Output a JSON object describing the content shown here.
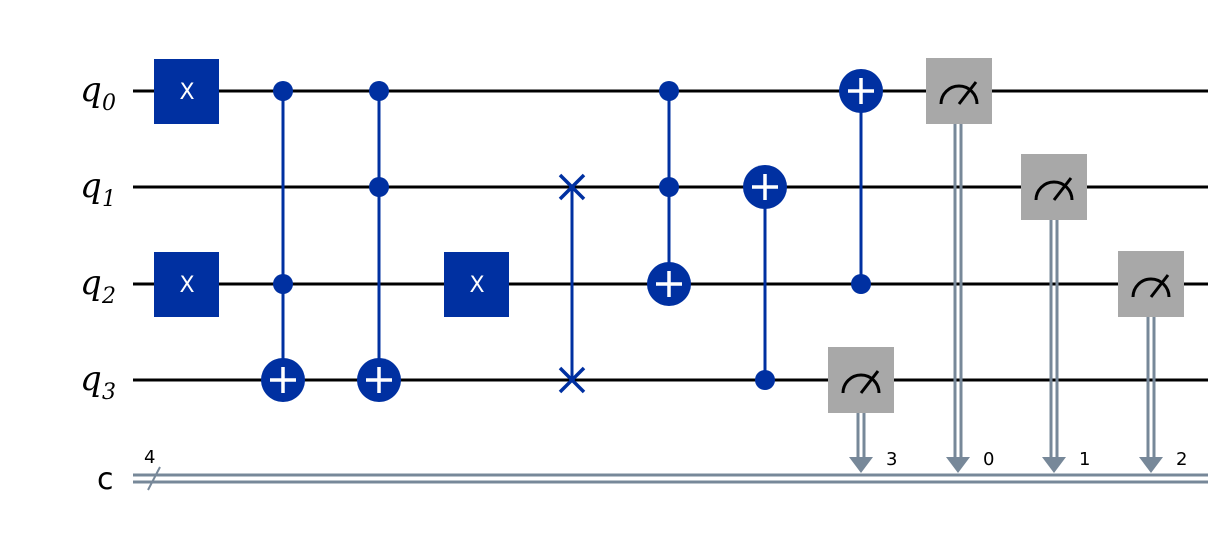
{
  "colors": {
    "gate": "#0030a1",
    "wire": "#000000",
    "measure": "#a8a8a8",
    "classical": "#778899"
  },
  "qubits": [
    {
      "letter": "q",
      "index": "0"
    },
    {
      "letter": "q",
      "index": "1"
    },
    {
      "letter": "q",
      "index": "2"
    },
    {
      "letter": "q",
      "index": "3"
    }
  ],
  "classical_register": {
    "label": "c",
    "width_label": "4"
  },
  "x_gate_label": "X",
  "gates": [
    {
      "type": "x",
      "qubit": 0,
      "label": "X"
    },
    {
      "type": "x",
      "qubit": 2,
      "label": "X"
    },
    {
      "type": "cx",
      "controls": [
        0,
        2
      ],
      "target": 3
    },
    {
      "type": "cx",
      "controls": [
        0,
        1
      ],
      "target": 3
    },
    {
      "type": "x",
      "qubit": 2,
      "label": "X"
    },
    {
      "type": "swap",
      "qubits": [
        1,
        3
      ]
    },
    {
      "type": "cx",
      "controls": [
        0,
        1
      ],
      "target": 2
    },
    {
      "type": "cx",
      "controls": [
        3
      ],
      "target": 1
    },
    {
      "type": "cx",
      "controls": [
        2
      ],
      "target": 0
    },
    {
      "type": "measure",
      "qubit": 3,
      "clbit": "3"
    },
    {
      "type": "measure",
      "qubit": 0,
      "clbit": "0"
    },
    {
      "type": "measure",
      "qubit": 1,
      "clbit": "1"
    },
    {
      "type": "measure",
      "qubit": 2,
      "clbit": "2"
    }
  ]
}
